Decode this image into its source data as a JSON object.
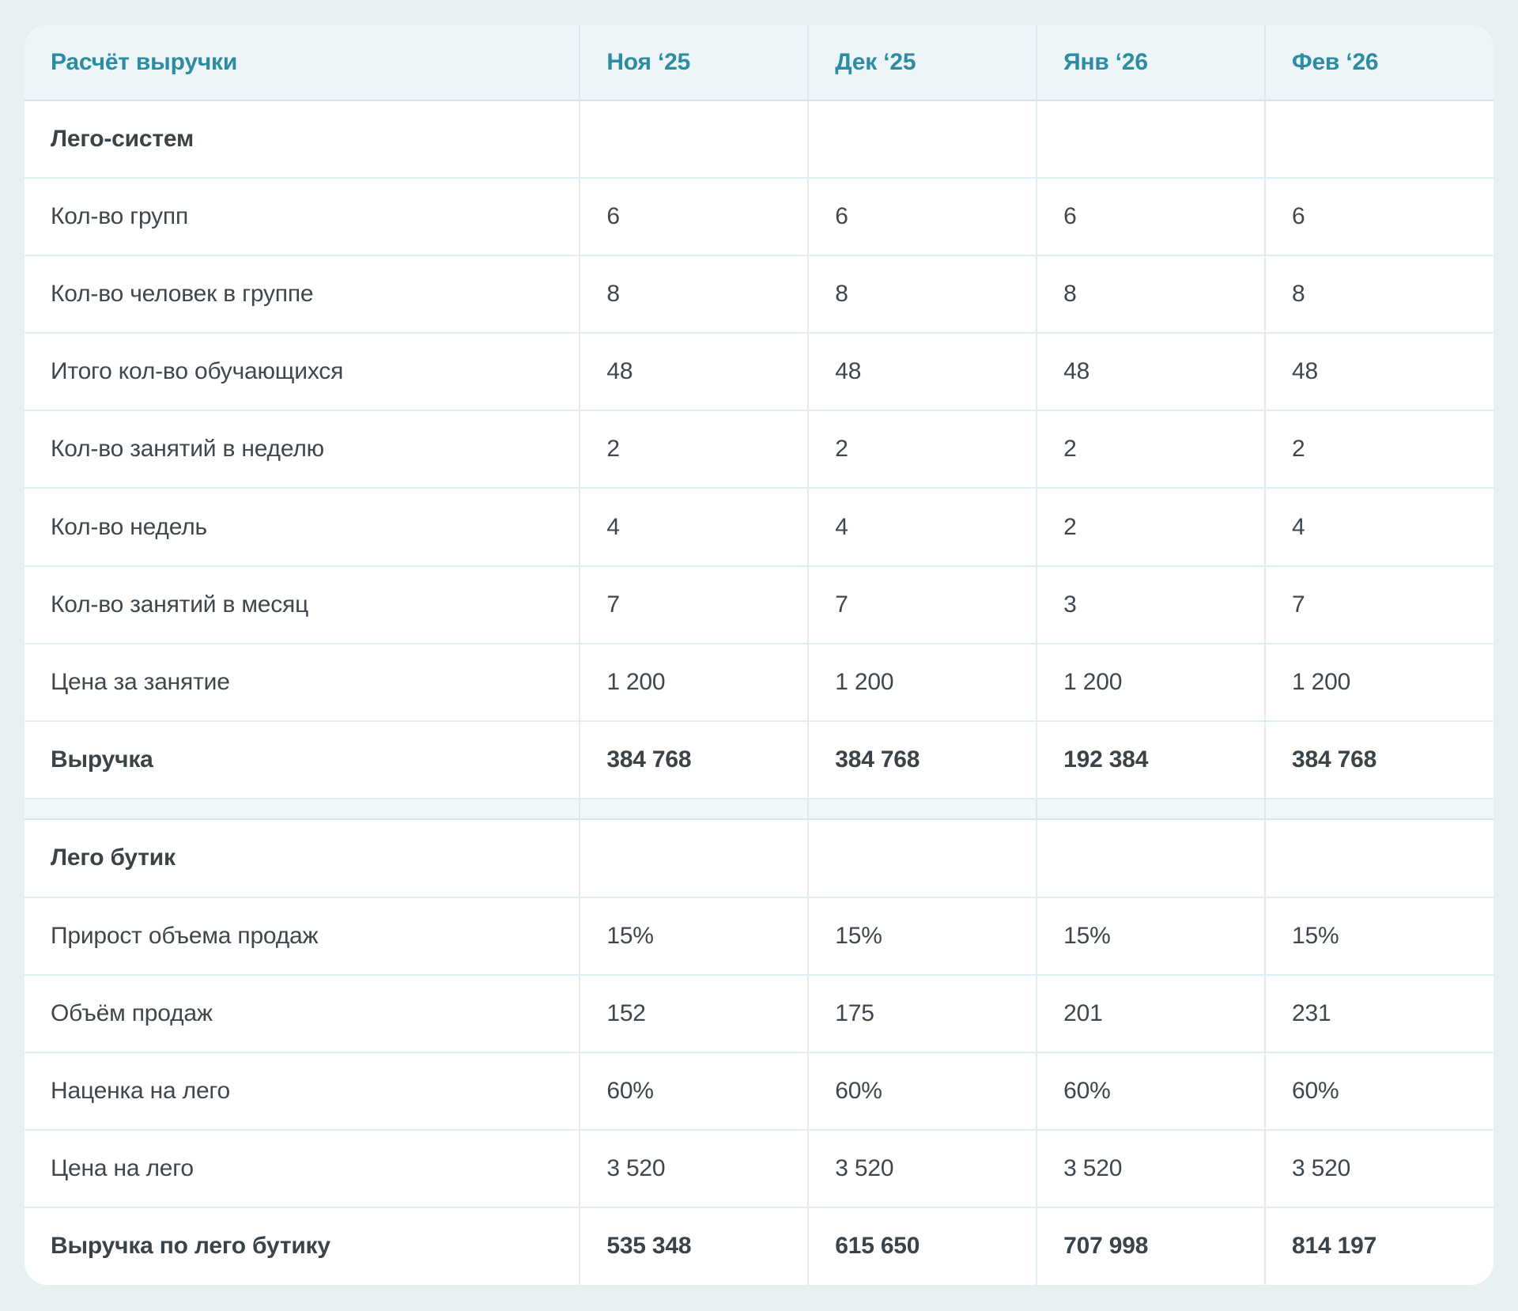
{
  "colors": {
    "page_background": "#e6f0f2",
    "card_background": "#ffffff",
    "header_background": "#edf5f8",
    "spacer_background": "#f1f8fa",
    "accent_teal": "#2c8ca2",
    "body_text": "#3f474e",
    "row_border": "#e0edf1",
    "header_border": "#d5e3e9"
  },
  "chart_data": {
    "type": "table",
    "title": "Расчёт выручки",
    "columns": [
      "Ноя ‘25",
      "Дек ‘25",
      "Янв ‘26",
      "Фев ‘26"
    ],
    "sections": [
      {
        "name": "Лего-систем",
        "rows": [
          {
            "label": "Кол-во групп",
            "values": [
              "6",
              "6",
              "6",
              "6"
            ],
            "bold": false
          },
          {
            "label": "Кол-во человек в группе",
            "values": [
              "8",
              "8",
              "8",
              "8"
            ],
            "bold": false
          },
          {
            "label": "Итого кол-во обучающихся",
            "values": [
              "48",
              "48",
              "48",
              "48"
            ],
            "bold": false
          },
          {
            "label": "Кол-во занятий в неделю",
            "values": [
              "2",
              "2",
              "2",
              "2"
            ],
            "bold": false
          },
          {
            "label": "Кол-во недель",
            "values": [
              "4",
              "4",
              "2",
              "4"
            ],
            "bold": false
          },
          {
            "label": "Кол-во занятий в месяц",
            "values": [
              "7",
              "7",
              "3",
              "7"
            ],
            "bold": false
          },
          {
            "label": "Цена за занятие",
            "values": [
              "1 200",
              "1 200",
              "1 200",
              "1 200"
            ],
            "bold": false
          },
          {
            "label": "Выручка",
            "values": [
              "384 768",
              "384 768",
              "192 384",
              "384 768"
            ],
            "bold": true
          }
        ]
      },
      {
        "name": "Лего бутик",
        "rows": [
          {
            "label": "Прирост объема продаж",
            "values": [
              "15%",
              "15%",
              "15%",
              "15%"
            ],
            "bold": false
          },
          {
            "label": "Объём продаж",
            "values": [
              "152",
              "175",
              "201",
              "231"
            ],
            "bold": false
          },
          {
            "label": "Наценка на лего",
            "values": [
              "60%",
              "60%",
              "60%",
              "60%"
            ],
            "bold": false
          },
          {
            "label": "Цена на лего",
            "values": [
              "3 520",
              "3 520",
              "3 520",
              "3 520"
            ],
            "bold": false
          },
          {
            "label": "Выручка по лего бутику",
            "values": [
              "535 348",
              "615 650",
              "707 998",
              "814 197"
            ],
            "bold": true
          }
        ]
      }
    ]
  }
}
